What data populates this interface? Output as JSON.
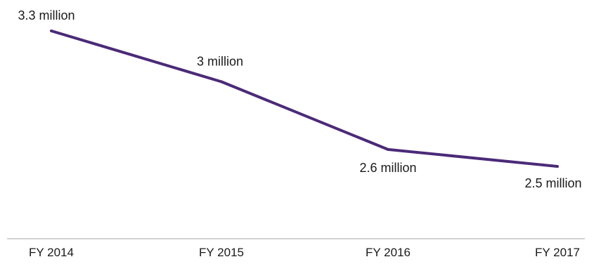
{
  "chart_data": {
    "type": "line",
    "categories": [
      "FY 2014",
      "FY 2015",
      "FY 2016",
      "FY 2017"
    ],
    "series": [
      {
        "values": [
          3.3,
          3.0,
          2.6,
          2.5
        ],
        "data_labels": [
          "3.3 million",
          "3 million",
          "2.6 million",
          "2.5 million"
        ],
        "color": "#4b2a78"
      }
    ],
    "ylim": [
      1.7,
      3.45
    ],
    "grid": false,
    "legend": "none",
    "axis_color": "#a6a6a6"
  }
}
